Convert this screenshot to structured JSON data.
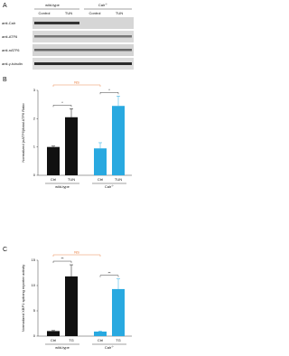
{
  "panel_a": {
    "label": "A",
    "groups": [
      {
        "name": "wild-type"
      },
      {
        "name": "Calr",
        "sup": "-/-"
      }
    ],
    "lanes": [
      "Control",
      "TUN",
      "Control",
      "TUN"
    ],
    "rows": [
      "anti-Calr",
      "anti-ATF6",
      "anti-nATF6",
      "anti-γ-tubulin"
    ]
  },
  "chart_data": [
    {
      "type": "bar",
      "panel_label": "B",
      "y_label": "Normalized (nATF6)/total ATF6 Ratio",
      "categories": [
        "Ctrl",
        "TUN",
        "Ctrl",
        "TUN"
      ],
      "groups": [
        {
          "name": "wild-type"
        },
        {
          "name": "Calr",
          "sup": "-/-"
        }
      ],
      "values": [
        1.0,
        2.05,
        0.95,
        2.45
      ],
      "errors": [
        0.03,
        0.3,
        0.2,
        0.35
      ],
      "colors": [
        "#111111",
        "#111111",
        "#29a9e0",
        "#29a9e0"
      ],
      "ylim": [
        0,
        3
      ],
      "yticks": [
        0,
        1,
        2,
        3
      ],
      "annotations": [
        {
          "text": "NS",
          "color": "#e8702a"
        },
        {
          "text": "*"
        },
        {
          "text": "*"
        }
      ]
    },
    {
      "type": "bar",
      "panel_label": "C",
      "y_label": "Normalized XBP1 splicing reporter activity",
      "categories": [
        "Ctrl",
        "TG",
        "Ctrl",
        "TG"
      ],
      "groups": [
        {
          "name": "wild-type"
        },
        {
          "name": "Calr",
          "sup": "-/-"
        }
      ],
      "values": [
        1.0,
        11.8,
        0.9,
        9.3
      ],
      "errors": [
        0.1,
        2.3,
        0.1,
        2.0
      ],
      "colors": [
        "#111111",
        "#111111",
        "#29a9e0",
        "#29a9e0"
      ],
      "ylim": [
        0,
        15
      ],
      "yticks": [
        0,
        5,
        10,
        15
      ],
      "annotations": [
        {
          "text": "NS",
          "color": "#e8702a"
        },
        {
          "text": "**"
        },
        {
          "text": "**"
        }
      ]
    }
  ]
}
